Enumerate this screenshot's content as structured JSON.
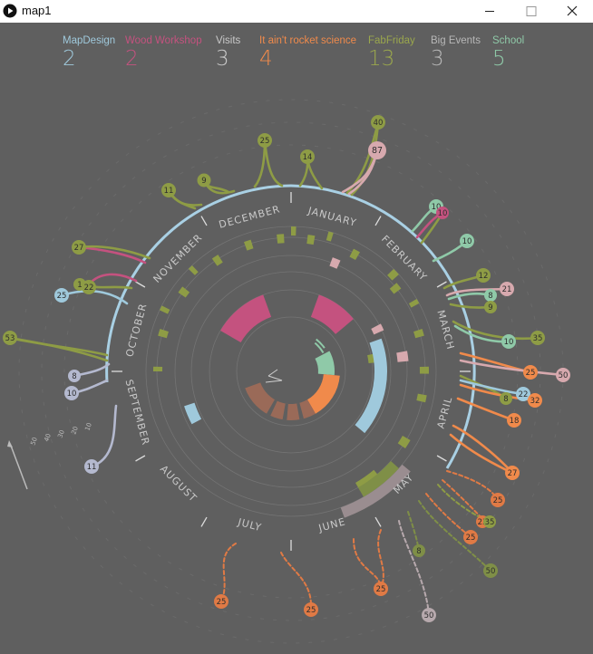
{
  "window": {
    "title": "map1"
  },
  "legend": [
    {
      "name": "MapDesign",
      "count": "2",
      "color": "#9fc9dc"
    },
    {
      "name": "Wood Workshop",
      "count": "2",
      "color": "#c4527f"
    },
    {
      "name": "Visits",
      "count": "3",
      "color": "#c9c9c9"
    },
    {
      "name": "It ain't rocket science",
      "count": "4",
      "color": "#f08a4b"
    },
    {
      "name": "FabFriday",
      "count": "13",
      "color": "#9aa74d"
    },
    {
      "name": "Big Events",
      "count": "3",
      "color": "#b7b7b7"
    },
    {
      "name": "School",
      "count": "5",
      "color": "#8fc9a8"
    }
  ],
  "months": [
    "JANUARY",
    "FEBRUARY",
    "MARCH",
    "APRIL",
    "MAY",
    "JUNE",
    "JULY",
    "AUGUST",
    "SEPTEMBER",
    "OCTOBER",
    "NOVEMBER",
    "DECEMBER"
  ],
  "scale_labels": [
    "10",
    "20",
    "30",
    "40",
    "50"
  ],
  "bubbles": [
    {
      "label": "40",
      "color": "#8e9c45"
    },
    {
      "label": "87",
      "color": "#d7a9ae"
    },
    {
      "label": "25",
      "color": "#8e9c45"
    },
    {
      "label": "14",
      "color": "#8e9c45"
    },
    {
      "label": "9",
      "color": "#8e9c45"
    },
    {
      "label": "11",
      "color": "#8e9c45"
    },
    {
      "label": "10",
      "color": "#8fc9a8"
    },
    {
      "label": "10",
      "color": "#c4527f"
    },
    {
      "label": "10",
      "color": "#8fc9a8"
    },
    {
      "label": "27",
      "color": "#8e9c45"
    },
    {
      "label": "12",
      "color": "#8e9c45"
    },
    {
      "label": "8",
      "color": "#8fc9a8"
    },
    {
      "label": "21",
      "color": "#d7a9ae"
    },
    {
      "label": "9",
      "color": "#8e9c45"
    },
    {
      "label": "1",
      "color": "#8e9c45"
    },
    {
      "label": "22",
      "color": "#8e9c45"
    },
    {
      "label": "25",
      "color": "#9fc9dc"
    },
    {
      "label": "53",
      "color": "#8e9c45"
    },
    {
      "label": "10",
      "color": "#8fc9a8"
    },
    {
      "label": "35",
      "color": "#8e9c45"
    },
    {
      "label": "25",
      "color": "#f08a4b"
    },
    {
      "label": "50",
      "color": "#d7a9ae"
    },
    {
      "label": "8",
      "color": "#b4b9cf"
    },
    {
      "label": "10",
      "color": "#b4b9cf"
    },
    {
      "label": "8",
      "color": "#8e9c45"
    },
    {
      "label": "22",
      "color": "#9fc9dc"
    },
    {
      "label": "32",
      "color": "#f08a4b"
    },
    {
      "label": "18",
      "color": "#f08a4b"
    },
    {
      "label": "11",
      "color": "#b4b9cf"
    },
    {
      "label": "27",
      "color": "#f08a4b"
    },
    {
      "label": "25",
      "color": "#e07a45"
    },
    {
      "label": "23",
      "color": "#e07a45"
    },
    {
      "label": "35",
      "color": "#8e9c45"
    },
    {
      "label": "25",
      "color": "#e07a45"
    },
    {
      "label": "8",
      "color": "#7f8f47"
    },
    {
      "label": "50",
      "color": "#7f8f47"
    },
    {
      "label": "25",
      "color": "#e07a45"
    },
    {
      "label": "25",
      "color": "#e07a45"
    },
    {
      "label": "25",
      "color": "#e07a45"
    },
    {
      "label": "50",
      "color": "#b7a9ad"
    }
  ]
}
